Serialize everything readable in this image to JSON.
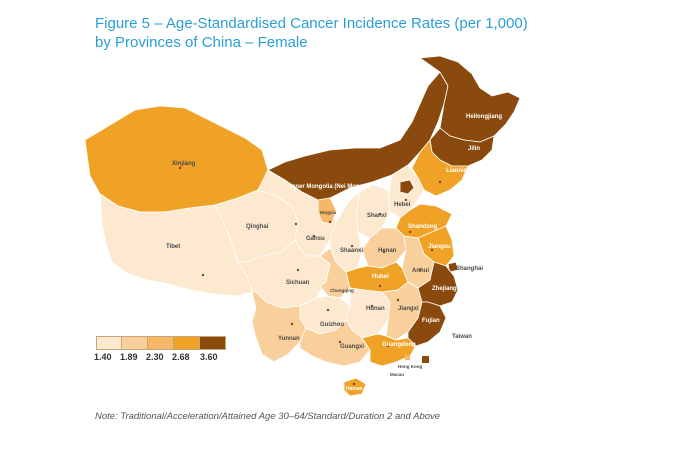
{
  "title": {
    "line1": "Figure 5 – Age-Standardised Cancer Incidence Rates (per 1,000)",
    "line2": "by Provinces of China – Female"
  },
  "legend": {
    "breaks": [
      "1.40",
      "1.89",
      "2.30",
      "2.68",
      "3.60"
    ],
    "colors": [
      "#fde9d0",
      "#f9cf9c",
      "#f6b866",
      "#f0a227",
      "#8b4a0d"
    ]
  },
  "note": "Note: Traditional/Acceleration/Attained Age 30–64/Standard/Duration 2 and Above",
  "provinces": {
    "xinjiang": "Xinjiang",
    "tibet": "Tibet",
    "qinghai": "Qinghai",
    "gansu": "Gansu",
    "inner_mongolia": "Inner Mongolia (Nei Mongol)",
    "heilongjiang": "Heilongjiang",
    "jilin": "Jilin",
    "liaoning": "Liaoning",
    "ningxia": "Ningxia",
    "shanxi": "Shanxi",
    "hebei": "Hebei",
    "shaanxi": "Shaanxi",
    "shandong": "Shandong",
    "henan": "Henan",
    "jiangsu": "Jiangsu",
    "shanghai": "Shanghai",
    "sichuan": "Sichuan",
    "chongqing": "Chongqing",
    "hubei": "Hubei",
    "anhui": "Anhui",
    "zhejiang": "Zhejiang",
    "hunan": "Hunan",
    "jiangxi": "Jiangxi",
    "guizhou": "Guizhou",
    "yunnan": "Yunnan",
    "guangxi": "Guangxi",
    "guangdong": "Guangdong",
    "fujian": "Fujian",
    "taiwan": "Taiwan",
    "hainan": "Hainan",
    "hong_kong": "Hong Kong",
    "macau": "Macau"
  }
}
